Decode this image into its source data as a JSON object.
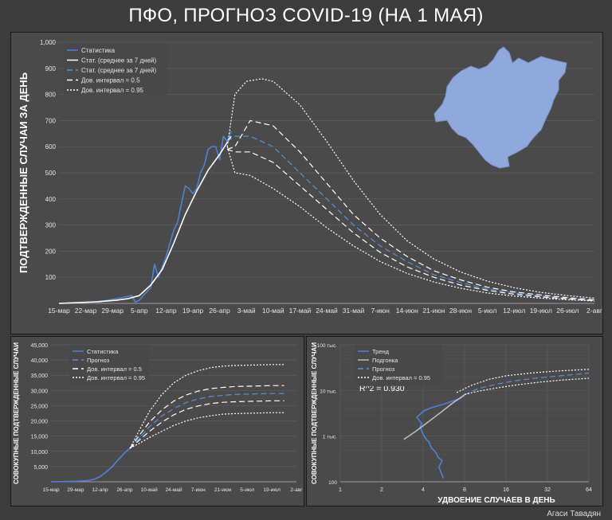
{
  "page": {
    "title": "ПФО, ПРОГНОЗ COVID-19 (НА 1 МАЯ)",
    "author": "Агаси Тавадян"
  },
  "chart_data": [
    {
      "type": "line",
      "ylabel": "ПОДТВЕРЖДЕННЫЕ СЛУЧАИ ЗА ДЕНЬ",
      "ylim": [
        0,
        1000
      ],
      "yticks": [
        {
          "v": 100,
          "label": "100"
        },
        {
          "v": 200,
          "label": "200"
        },
        {
          "v": 300,
          "label": "300"
        },
        {
          "v": 400,
          "label": "400"
        },
        {
          "v": 500,
          "label": "500"
        },
        {
          "v": 600,
          "label": "600"
        },
        {
          "v": 700,
          "label": "700"
        },
        {
          "v": 800,
          "label": "800"
        },
        {
          "v": 900,
          "label": "900"
        },
        {
          "v": 1000,
          "label": "1,000"
        }
      ],
      "xlim": [
        0,
        140
      ],
      "xticks": [
        {
          "v": 0,
          "label": "15-мар"
        },
        {
          "v": 7,
          "label": "22-мар"
        },
        {
          "v": 14,
          "label": "29-мар"
        },
        {
          "v": 21,
          "label": "5-апр"
        },
        {
          "v": 28,
          "label": "12-апр"
        },
        {
          "v": 35,
          "label": "19-апр"
        },
        {
          "v": 42,
          "label": "26-апр"
        },
        {
          "v": 49,
          "label": "3-май"
        },
        {
          "v": 56,
          "label": "10-май"
        },
        {
          "v": 63,
          "label": "17-май"
        },
        {
          "v": 70,
          "label": "24-май"
        },
        {
          "v": 77,
          "label": "31-май"
        },
        {
          "v": 84,
          "label": "7-июн"
        },
        {
          "v": 91,
          "label": "14-июн"
        },
        {
          "v": 98,
          "label": "21-июн"
        },
        {
          "v": 105,
          "label": "28-июн"
        },
        {
          "v": 112,
          "label": "5-июл"
        },
        {
          "v": 119,
          "label": "12-июл"
        },
        {
          "v": 126,
          "label": "19-июл"
        },
        {
          "v": 133,
          "label": "26-июл"
        },
        {
          "v": 140,
          "label": "2-авг"
        }
      ],
      "legend_position": "top-left",
      "legend": [
        "Статистика",
        "Стат. (среднее за 7 дней)",
        "Стат. (среднее за 7 дней)",
        "Дов. интервал = 0.5",
        "Дов. интервал = 0.95"
      ],
      "series": [
        {
          "name": "Статистика",
          "style": "solid",
          "color": "#4f81d8",
          "x": [
            0,
            3,
            6,
            9,
            12,
            15,
            17,
            19,
            20,
            21,
            22,
            24,
            25,
            26,
            27,
            28,
            29,
            30,
            31,
            32,
            33,
            34,
            35,
            36,
            37,
            38,
            39,
            40,
            41,
            42,
            43,
            44,
            45
          ],
          "y": [
            0,
            2,
            4,
            6,
            10,
            18,
            24,
            30,
            5,
            12,
            30,
            60,
            150,
            100,
            140,
            180,
            230,
            280,
            310,
            380,
            450,
            440,
            420,
            440,
            500,
            530,
            590,
            600,
            600,
            550,
            640,
            620,
            660
          ]
        },
        {
          "name": "Стат. (среднее за 7 дней)",
          "style": "solid",
          "color": "#ffffff",
          "x": [
            0,
            5,
            10,
            15,
            18,
            21,
            24,
            27,
            30,
            33,
            36,
            39,
            42,
            45
          ],
          "y": [
            0,
            3,
            6,
            12,
            18,
            30,
            70,
            130,
            230,
            340,
            430,
            510,
            570,
            640
          ]
        },
        {
          "name": "Стат. (среднее за 7 дней)",
          "style": "dash",
          "color": "#5b8fd6",
          "x": [
            44,
            46,
            50,
            56,
            63,
            70,
            77,
            84,
            91,
            98,
            105,
            112,
            119,
            126,
            133,
            140
          ],
          "y": [
            620,
            640,
            640,
            600,
            500,
            400,
            300,
            220,
            160,
            110,
            80,
            55,
            40,
            28,
            20,
            12
          ]
        },
        {
          "name": "Дов. интервал = 0.5",
          "style": "dash",
          "color": "#ffffff",
          "x": [
            44,
            46,
            50,
            56,
            63,
            70,
            77,
            84,
            91,
            98,
            105,
            112,
            119,
            126,
            133,
            140
          ],
          "y": [
            590,
            600,
            700,
            680,
            580,
            460,
            340,
            250,
            180,
            125,
            90,
            62,
            44,
            32,
            22,
            14
          ]
        },
        {
          "name": "Дов. интервал = 0.5",
          "style": "dash",
          "color": "#ffffff",
          "x": [
            44,
            46,
            50,
            56,
            63,
            70,
            77,
            84,
            91,
            98,
            105,
            112,
            119,
            126,
            133,
            140
          ],
          "y": [
            590,
            580,
            580,
            540,
            450,
            360,
            270,
            195,
            140,
            100,
            70,
            50,
            35,
            25,
            17,
            10
          ]
        },
        {
          "name": "Дов. интервал = 0.95",
          "style": "dot",
          "color": "#ffffff",
          "x": [
            44,
            46,
            49,
            53,
            56,
            63,
            70,
            77,
            84,
            91,
            98,
            105,
            112,
            119,
            126,
            133,
            140
          ],
          "y": [
            600,
            800,
            850,
            860,
            850,
            760,
            620,
            470,
            340,
            240,
            170,
            120,
            85,
            60,
            42,
            30,
            20
          ]
        },
        {
          "name": "Дов. интервал = 0.95",
          "style": "dot",
          "color": "#ffffff",
          "x": [
            44,
            46,
            50,
            56,
            63,
            70,
            77,
            84,
            91,
            98,
            105,
            112,
            119,
            126,
            133,
            140
          ],
          "y": [
            600,
            500,
            490,
            440,
            370,
            290,
            220,
            160,
            115,
            82,
            58,
            40,
            28,
            20,
            14,
            9
          ]
        }
      ]
    },
    {
      "type": "line",
      "ylabel": "СОВОКУПНЫЕ ПОДТВЕРЖДЕННЫЕ СЛУЧАИ",
      "ylim": [
        0,
        45000
      ],
      "yticks": [
        {
          "v": 5000,
          "label": "5,000"
        },
        {
          "v": 10000,
          "label": "10,000"
        },
        {
          "v": 15000,
          "label": "15,000"
        },
        {
          "v": 20000,
          "label": "20,000"
        },
        {
          "v": 25000,
          "label": "25,000"
        },
        {
          "v": 30000,
          "label": "30,000"
        },
        {
          "v": 35000,
          "label": "35,000"
        },
        {
          "v": 40000,
          "label": "40,000"
        },
        {
          "v": 45000,
          "label": "45,000"
        }
      ],
      "xlim": [
        0,
        140
      ],
      "xticks": [
        {
          "v": 0,
          "label": "15-мар"
        },
        {
          "v": 14,
          "label": "29-мар"
        },
        {
          "v": 28,
          "label": "12-апр"
        },
        {
          "v": 42,
          "label": "26-апр"
        },
        {
          "v": 56,
          "label": "10-май"
        },
        {
          "v": 70,
          "label": "24-май"
        },
        {
          "v": 84,
          "label": "7-июн"
        },
        {
          "v": 98,
          "label": "21-июн"
        },
        {
          "v": 112,
          "label": "5-июл"
        },
        {
          "v": 126,
          "label": "19-июл"
        },
        {
          "v": 140,
          "label": "2-авг"
        }
      ],
      "legend_position": "top-left",
      "legend": [
        "Статистика",
        "Прогноз",
        "Дов. интервал = 0.5",
        "Дов. интервал = 0.95"
      ],
      "series": [
        {
          "name": "Статистика",
          "style": "solid",
          "color": "#4f81d8",
          "x": [
            0,
            14,
            21,
            25,
            28,
            31,
            35,
            38,
            42,
            45
          ],
          "y": [
            0,
            150,
            400,
            900,
            1700,
            3000,
            5000,
            7000,
            9500,
            11000
          ]
        },
        {
          "name": "Прогноз",
          "style": "dash",
          "color": "#5b8fd6",
          "x": [
            45,
            50,
            56,
            63,
            70,
            77,
            84,
            91,
            98,
            105,
            112,
            119,
            126,
            133
          ],
          "y": [
            11000,
            14000,
            18000,
            21500,
            24000,
            26000,
            27200,
            28000,
            28400,
            28700,
            28800,
            28900,
            29000,
            29000
          ]
        },
        {
          "name": "Дов. интервал = 0.5",
          "style": "dash",
          "color": "#ffffff",
          "x": [
            45,
            50,
            56,
            63,
            70,
            77,
            84,
            91,
            98,
            105,
            112,
            119,
            126,
            133
          ],
          "y": [
            11000,
            15000,
            19500,
            23500,
            26500,
            28500,
            29800,
            30600,
            31000,
            31300,
            31400,
            31500,
            31600,
            31600
          ]
        },
        {
          "name": "Дов. интервал = 0.5",
          "style": "dash",
          "color": "#ffffff",
          "x": [
            45,
            50,
            56,
            63,
            70,
            77,
            84,
            91,
            98,
            105,
            112,
            119,
            126,
            133
          ],
          "y": [
            11000,
            13500,
            16500,
            19500,
            22000,
            23800,
            24900,
            25700,
            26100,
            26300,
            26400,
            26500,
            26600,
            26600
          ]
        },
        {
          "name": "Дов. интервал = 0.95",
          "style": "dot",
          "color": "#ffffff",
          "x": [
            45,
            50,
            56,
            63,
            70,
            77,
            84,
            91,
            98,
            105,
            112,
            119,
            126,
            133
          ],
          "y": [
            11000,
            16500,
            23000,
            28500,
            32500,
            35000,
            36500,
            37500,
            38000,
            38200,
            38300,
            38400,
            38500,
            38500
          ]
        },
        {
          "name": "Дов. интервал = 0.95",
          "style": "dot",
          "color": "#ffffff",
          "x": [
            45,
            50,
            56,
            63,
            70,
            77,
            84,
            91,
            98,
            105,
            112,
            119,
            126,
            133
          ],
          "y": [
            11000,
            12500,
            14500,
            16500,
            18500,
            20000,
            21000,
            21700,
            22200,
            22400,
            22500,
            22600,
            22700,
            22700
          ]
        }
      ]
    },
    {
      "type": "line",
      "xscale": "log2",
      "yscale": "log10",
      "xlabel": "УДВОЕНИЕ СЛУЧАЕВ В ДЕНЬ",
      "ylabel": "СОВОКУПНЫЕ ПОДТВЕРЖДЕННЫЕ СЛУЧАИ",
      "xlim": [
        1,
        64
      ],
      "ylim": [
        100,
        100000
      ],
      "xticks": [
        {
          "v": 1,
          "label": "1"
        },
        {
          "v": 2,
          "label": "2"
        },
        {
          "v": 4,
          "label": "4"
        },
        {
          "v": 8,
          "label": "8"
        },
        {
          "v": 16,
          "label": "16"
        },
        {
          "v": 32,
          "label": "32"
        },
        {
          "v": 64,
          "label": "64"
        }
      ],
      "yticks": [
        {
          "v": 100,
          "label": "100"
        },
        {
          "v": 1000,
          "label": "1 тыс."
        },
        {
          "v": 10000,
          "label": "10 тыс."
        },
        {
          "v": 100000,
          "label": "100 тыс."
        }
      ],
      "annotation": "R^2 = 0.930",
      "legend_position": "top-left",
      "legend": [
        "Тренд",
        "Подгонка",
        "Прогноз",
        "Дов. интервал = 0.95"
      ],
      "series": [
        {
          "name": "Тренд",
          "style": "solid",
          "color": "#4f81d8",
          "x": [
            5.6,
            5.4,
            5.2,
            5.5,
            5.1,
            5.0,
            4.8,
            4.6,
            4.5,
            4.4,
            4.2,
            4.1,
            4.0,
            3.9,
            3.8,
            3.9,
            3.7,
            3.6,
            3.8,
            4.0,
            4.5,
            5.5,
            6.5,
            7.5,
            8.0
          ],
          "y": [
            120,
            160,
            210,
            290,
            350,
            420,
            480,
            550,
            640,
            750,
            860,
            950,
            1100,
            1300,
            1600,
            1900,
            2300,
            2600,
            3000,
            3500,
            4100,
            4900,
            5800,
            6800,
            7800
          ]
        },
        {
          "name": "Подгонка",
          "style": "solid",
          "color": "#bcbcbc",
          "x": [
            2.9,
            3.5,
            4.5,
            5.5,
            6.5,
            7.5,
            8.0
          ],
          "y": [
            850,
            1250,
            2200,
            3500,
            5200,
            7000,
            8100
          ]
        },
        {
          "name": "Прогноз",
          "style": "dash",
          "color": "#5b8fd6",
          "x": [
            8,
            10,
            14,
            20,
            28,
            40,
            64
          ],
          "y": [
            8000,
            11000,
            14000,
            16800,
            19000,
            21000,
            24000
          ]
        },
        {
          "name": "Дов. интервал = 0.95",
          "style": "dot",
          "color": "#ffffff",
          "x": [
            7,
            9,
            12,
            16,
            24,
            36,
            64
          ],
          "y": [
            9000,
            13000,
            17500,
            21000,
            24000,
            26500,
            29000
          ]
        },
        {
          "name": "Дов. интервал = 0.95",
          "style": "dot",
          "color": "#ffffff",
          "x": [
            8,
            10,
            14,
            20,
            28,
            40,
            64
          ],
          "y": [
            8200,
            9600,
            11500,
            13500,
            15200,
            16800,
            18500
          ]
        }
      ]
    }
  ]
}
